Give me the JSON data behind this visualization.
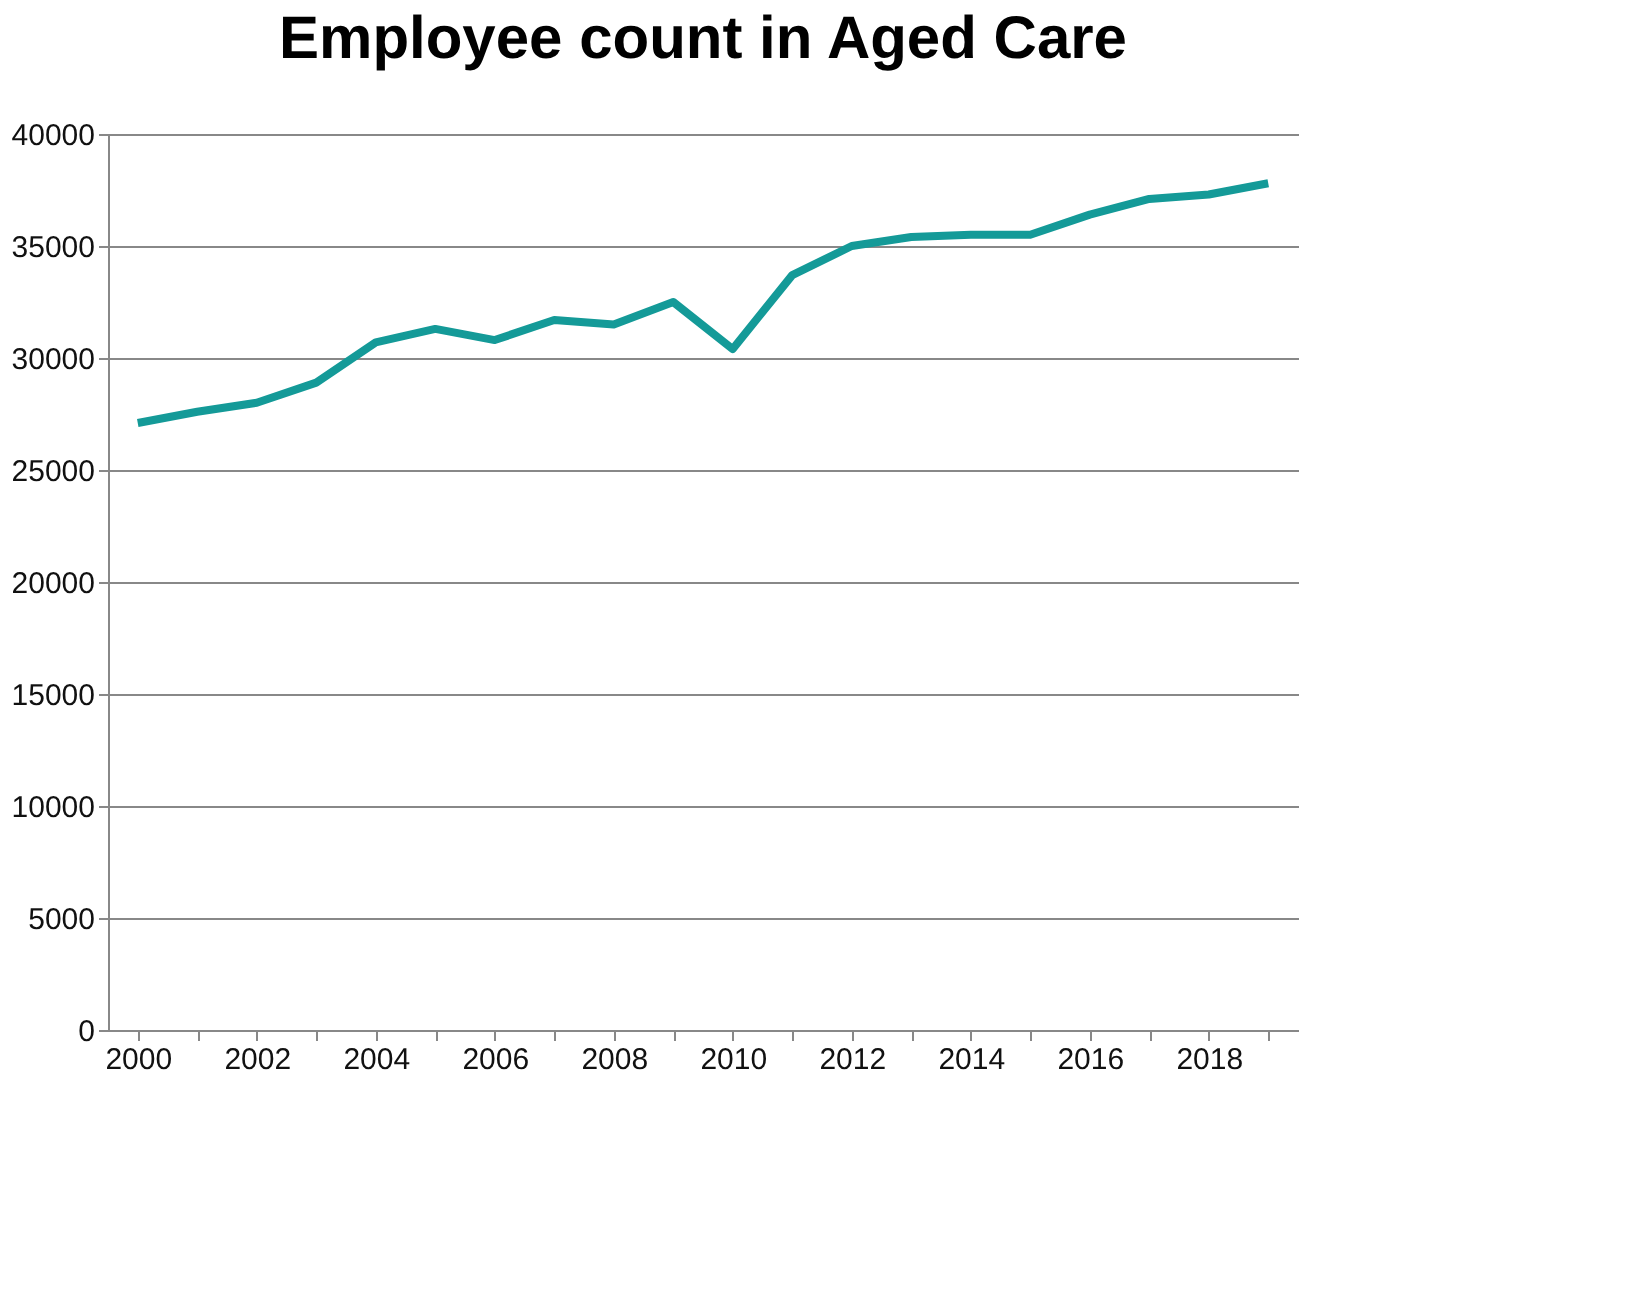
{
  "chart_data": {
    "type": "line",
    "title": "Employee count in Aged Care",
    "categories": [
      "2000",
      null,
      "2002",
      null,
      "2004",
      null,
      "2006",
      null,
      "2008",
      null,
      "2010",
      null,
      "2012",
      null,
      "2014",
      null,
      "2016",
      null,
      "2018",
      null
    ],
    "series": [
      {
        "color": "#149a98",
        "values": [
          27100,
          27600,
          28000,
          28900,
          30700,
          31300,
          30800,
          31700,
          31500,
          32500,
          30400,
          33700,
          35000,
          35400,
          35500,
          35500,
          36400,
          37100,
          37300,
          37800
        ]
      }
    ],
    "ylim": [
      0,
      40000
    ],
    "yticks": [
      0,
      5000,
      10000,
      15000,
      20000,
      25000,
      30000,
      35000,
      40000
    ],
    "grid": "y",
    "legend": false,
    "marker": "none",
    "line_style": "solid"
  }
}
